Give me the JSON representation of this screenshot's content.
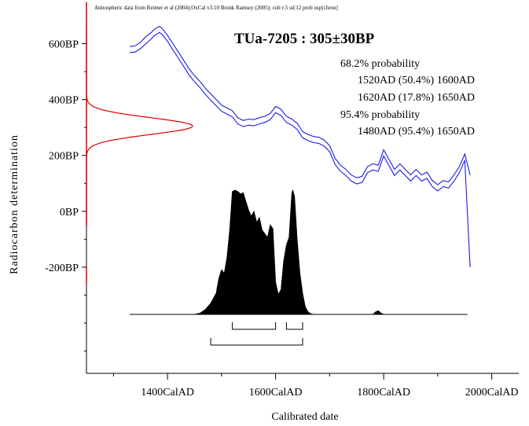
{
  "chart_data": {
    "type": "line",
    "header_note": "Atmospheric data from Reimer et al (2004);OxCal v3.10 Bronk Ramsey (2005); cub r:5 sd:12 prob usp[chron]",
    "title": "TUa-7205 : 305±30BP",
    "xlabel": "Calibrated date",
    "ylabel": "Radiocarbon determination",
    "xlim": [
      1250,
      2050
    ],
    "ylim": [
      -580,
      700
    ],
    "x_ticks": [
      1400,
      1600,
      1800,
      2000
    ],
    "x_tick_labels": [
      "1400CalAD",
      "1600CalAD",
      "1800CalAD",
      "2000CalAD"
    ],
    "y_ticks": [
      600,
      400,
      200,
      0,
      -200
    ],
    "y_tick_labels": [
      "600BP",
      "400BP",
      "200BP",
      "0BP",
      "-200BP"
    ],
    "annotations": [
      "68.2% probability",
      "1520AD (50.4%) 1600AD",
      "1620AD (17.8%) 1650AD",
      "95.4% probability",
      "1480AD (95.4%) 1650AD"
    ],
    "ranges_68": [
      [
        1520,
        1600
      ],
      [
        1620,
        1650
      ]
    ],
    "ranges_95": [
      [
        1480,
        1650
      ]
    ],
    "colors": {
      "curve": "#1a1ae6",
      "measurement": "#e00000",
      "posterior": "#000000",
      "axis": "#000000"
    },
    "measurement": {
      "mean": 305,
      "sd": 30
    },
    "calibration_curve": {
      "x": [
        1330,
        1340,
        1350,
        1360,
        1370,
        1375,
        1380,
        1385,
        1390,
        1400,
        1410,
        1420,
        1430,
        1440,
        1450,
        1460,
        1470,
        1480,
        1490,
        1500,
        1510,
        1520,
        1530,
        1540,
        1550,
        1560,
        1570,
        1580,
        1590,
        1600,
        1605,
        1610,
        1620,
        1630,
        1640,
        1650,
        1660,
        1670,
        1680,
        1690,
        1700,
        1710,
        1720,
        1730,
        1740,
        1750,
        1760,
        1770,
        1780,
        1790,
        1800,
        1810,
        1820,
        1830,
        1840,
        1850,
        1860,
        1870,
        1880,
        1890,
        1900,
        1910,
        1920,
        1930,
        1940,
        1950,
        1960
      ],
      "y_upper": [
        590,
        592,
        605,
        625,
        640,
        650,
        657,
        662,
        655,
        630,
        600,
        570,
        540,
        510,
        485,
        465,
        440,
        420,
        400,
        380,
        370,
        360,
        335,
        325,
        330,
        328,
        335,
        340,
        350,
        375,
        370,
        365,
        340,
        330,
        315,
        285,
        275,
        268,
        265,
        255,
        235,
        190,
        165,
        150,
        130,
        120,
        125,
        160,
        170,
        165,
        220,
        185,
        150,
        170,
        150,
        130,
        150,
        130,
        140,
        110,
        95,
        110,
        105,
        130,
        160,
        205,
        130
      ],
      "y_lower": [
        568,
        570,
        582,
        600,
        617,
        628,
        634,
        640,
        633,
        608,
        578,
        548,
        518,
        488,
        463,
        443,
        418,
        398,
        378,
        358,
        348,
        338,
        313,
        303,
        308,
        306,
        313,
        318,
        328,
        353,
        348,
        343,
        318,
        308,
        293,
        263,
        253,
        246,
        243,
        233,
        213,
        168,
        143,
        128,
        108,
        98,
        103,
        138,
        148,
        143,
        198,
        163,
        128,
        148,
        128,
        108,
        128,
        108,
        118,
        88,
        73,
        88,
        83,
        108,
        138,
        183,
        -200
      ]
    },
    "posterior": {
      "x": [
        1450,
        1460,
        1470,
        1480,
        1490,
        1495,
        1500,
        1505,
        1510,
        1515,
        1520,
        1525,
        1530,
        1535,
        1540,
        1545,
        1550,
        1555,
        1560,
        1565,
        1570,
        1575,
        1580,
        1585,
        1590,
        1595,
        1600,
        1605,
        1610,
        1615,
        1620,
        1625,
        1630,
        1632,
        1635,
        1640,
        1645,
        1650,
        1655,
        1660,
        1665,
        1670,
        1780,
        1785,
        1790,
        1795,
        1800
      ],
      "y": [
        0,
        0.01,
        0.04,
        0.09,
        0.17,
        0.29,
        0.36,
        0.33,
        0.46,
        0.68,
        0.99,
        1.0,
        0.99,
        0.97,
        0.98,
        0.91,
        0.84,
        0.79,
        0.83,
        0.74,
        0.78,
        0.68,
        0.65,
        0.62,
        0.72,
        0.69,
        0.26,
        0.16,
        0.2,
        0.43,
        0.56,
        0.62,
        0.98,
        1.0,
        0.95,
        0.6,
        0.33,
        0.17,
        0.06,
        0.02,
        0.005,
        0,
        0,
        0.02,
        0.03,
        0.01,
        0
      ]
    }
  }
}
